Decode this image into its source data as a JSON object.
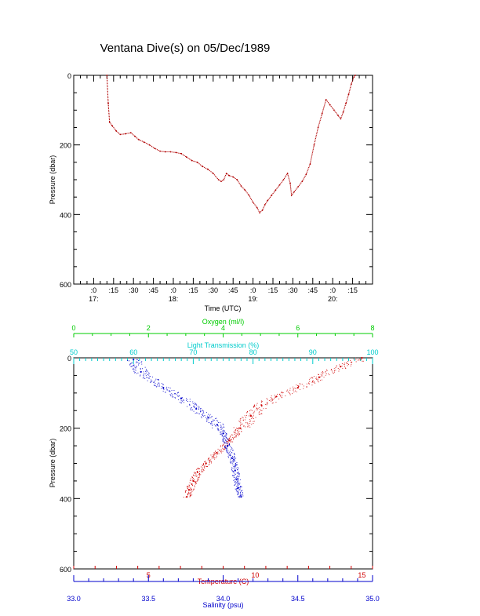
{
  "title": "Ventana Dive(s) on 05/Dec/1989",
  "colors": {
    "axis": "#000000",
    "temperature": "#d00000",
    "salinity": "#0000cc",
    "light": "#00cccc",
    "oxygen": "#00cc00",
    "track": "#b00000"
  },
  "chart_data": [
    {
      "type": "line",
      "title": "Ventana Dive(s) on 05/Dec/1989",
      "xlabel": "Time (UTC)",
      "ylabel": "Pressure (dbar)",
      "xlim": [
        "16:45",
        "20:30"
      ],
      "ylim": [
        600,
        0
      ],
      "x_ticks": [
        ":0",
        ":15",
        ":30",
        ":45",
        ":0",
        ":15",
        ":30",
        ":45",
        ":0",
        ":15",
        ":30",
        ":45",
        ":0",
        ":15"
      ],
      "x_tick_values": [
        "17:00",
        "17:15",
        "17:30",
        "17:45",
        "18:00",
        "18:15",
        "18:30",
        "18:45",
        "19:00",
        "19:15",
        "19:30",
        "19:45",
        "20:00",
        "20:15"
      ],
      "hour_labels": [
        "17:",
        "18:",
        "19:",
        "20:"
      ],
      "y_ticks": [
        "0",
        "200",
        "400",
        "600"
      ],
      "series": [
        {
          "x": [
            "17:10",
            "17:11",
            "17:12",
            "17:14",
            "17:17",
            "17:20",
            "17:24",
            "17:28",
            "17:31",
            "17:34",
            "17:38",
            "17:42",
            "17:46",
            "17:50",
            "17:54",
            "17:58",
            "18:02",
            "18:06",
            "18:10",
            "18:14",
            "18:18",
            "18:22",
            "18:26",
            "18:30",
            "18:34",
            "18:36",
            "18:38",
            "18:40",
            "18:42",
            "18:45",
            "18:48",
            "18:51",
            "18:54",
            "18:57",
            "19:00",
            "19:03",
            "19:05",
            "19:07",
            "19:09",
            "19:11",
            "19:14",
            "19:17",
            "19:20",
            "19:23",
            "19:26",
            "19:28",
            "19:29",
            "19:31",
            "19:34",
            "19:37",
            "19:40",
            "19:43",
            "19:46",
            "19:49",
            "19:52",
            "19:55",
            "19:58",
            "20:01",
            "20:04",
            "20:06",
            "20:08",
            "20:10",
            "20:12",
            "20:14",
            "20:16",
            "20:17"
          ],
          "y": [
            0,
            80,
            135,
            145,
            160,
            170,
            168,
            165,
            175,
            185,
            192,
            200,
            210,
            218,
            220,
            220,
            222,
            225,
            235,
            245,
            250,
            262,
            270,
            282,
            300,
            305,
            300,
            282,
            288,
            292,
            300,
            318,
            330,
            345,
            365,
            380,
            395,
            388,
            372,
            360,
            345,
            330,
            315,
            300,
            282,
            310,
            345,
            335,
            320,
            305,
            285,
            255,
            200,
            150,
            110,
            70,
            85,
            100,
            115,
            125,
            105,
            80,
            55,
            25,
            5,
            0
          ]
        }
      ]
    },
    {
      "type": "scatter",
      "ylabel": "Pressure (dbar)",
      "ylim": [
        600,
        0
      ],
      "y_ticks": [
        "0",
        "200",
        "400",
        "600"
      ],
      "axes": [
        {
          "position": "top",
          "label": "Oxygen (ml/l)",
          "range": [
            0,
            8
          ],
          "ticks": [
            "0",
            "2",
            "4",
            "6",
            "8"
          ]
        },
        {
          "position": "top",
          "label": "Light Transmission (%)",
          "range": [
            50,
            100
          ],
          "ticks": [
            "50",
            "60",
            "70",
            "80",
            "90",
            "100"
          ]
        },
        {
          "position": "bottom",
          "label": "Temperature (C)",
          "range": [
            1.5,
            15.5
          ],
          "ticks": [
            "5",
            "10",
            "15"
          ]
        },
        {
          "position": "bottom",
          "label": "Salinity (psu)",
          "range": [
            33.0,
            35.0
          ],
          "ticks": [
            "33.0",
            "33.5",
            "34.0",
            "34.5",
            "35.0"
          ]
        }
      ],
      "series": [
        {
          "name": "Temperature",
          "axis": "Temperature (C)",
          "x": [
            15.0,
            14.0,
            13.0,
            12.0,
            11.0,
            10.3,
            9.8,
            9.3,
            8.8,
            8.2,
            7.7,
            7.3,
            7.1,
            6.9,
            6.8
          ],
          "y": [
            0,
            25,
            55,
            85,
            110,
            135,
            165,
            200,
            235,
            270,
            300,
            325,
            350,
            375,
            395
          ]
        },
        {
          "name": "Salinity",
          "axis": "Salinity (psu)",
          "x": [
            33.4,
            33.45,
            33.6,
            33.72,
            33.82,
            33.9,
            33.96,
            34.0,
            34.03,
            34.06,
            34.08,
            34.09,
            34.1,
            34.12
          ],
          "y": [
            5,
            40,
            85,
            115,
            145,
            170,
            190,
            215,
            250,
            285,
            320,
            345,
            370,
            395
          ]
        }
      ]
    }
  ]
}
